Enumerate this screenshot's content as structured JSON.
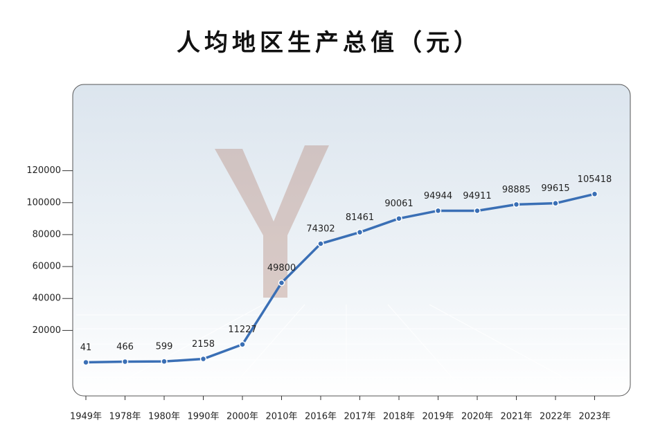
{
  "chart_data": {
    "type": "line",
    "title": "人均地区生产总值（元）",
    "categories": [
      "1949年",
      "1978年",
      "1980年",
      "1990年",
      "2000年",
      "2010年",
      "2016年",
      "2017年",
      "2018年",
      "2019年",
      "2020年",
      "2021年",
      "2022年",
      "2023年"
    ],
    "series": [
      {
        "name": "人均地区生产总值",
        "color": "#3a6fb5",
        "values": [
          41,
          466,
          599,
          2158,
          11227,
          49800,
          74302,
          81461,
          90061,
          94944,
          94911,
          98885,
          99615,
          105418
        ]
      }
    ],
    "ylim": [
      -21000,
      174000
    ],
    "yticks": [
      20000,
      40000,
      60000,
      80000,
      100000,
      120000
    ]
  }
}
